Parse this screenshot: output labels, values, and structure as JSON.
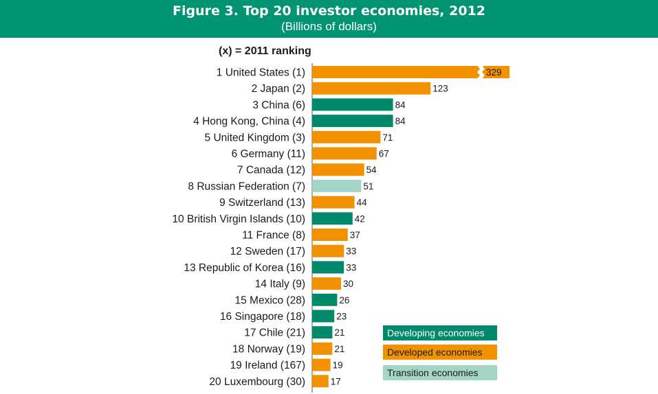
{
  "header": {
    "title": "Figure 3. Top 20 investor economies, 2012",
    "subtitle": "(Billions of dollars)"
  },
  "ranking_note": "(x) = 2011 ranking",
  "colors": {
    "header": "#009472",
    "developing": "#00896a",
    "developed": "#f29200",
    "transition": "#a4d5c6"
  },
  "legend": [
    {
      "label": "Developing economies",
      "group": "developing",
      "text_color": "#ffffff"
    },
    {
      "label": "Developed economies",
      "group": "developed",
      "text_color": "#1a1a1a"
    },
    {
      "label": "Transition economies",
      "group": "transition",
      "text_color": "#1a1a1a"
    }
  ],
  "chart_data": {
    "type": "bar",
    "orientation": "horizontal",
    "title": "Figure 3. Top 20 investor economies, 2012",
    "subtitle": "(Billions of dollars)",
    "xlabel": "",
    "ylabel": "",
    "grid": false,
    "axis_break": {
      "category": "1 United States (1)"
    },
    "categories": [
      "1 United States (1)",
      "2 Japan (2)",
      "3 China (6)",
      "4 Hong Kong, China (4)",
      "5 United Kingdom (3)",
      "6 Germany (11)",
      "7 Canada (12)",
      "8 Russian Federation (7)",
      "9 Switzerland (13)",
      "10 British Virgin Islands (10)",
      "11 France (8)",
      "12 Sweden (17)",
      "13 Republic of Korea (16)",
      "14 Italy (9)",
      "15 Mexico (28)",
      "16 Singapore (18)",
      "17 Chile (21)",
      "18 Norway (19)",
      "19 Ireland (167)",
      "20 Luxembourg (30)"
    ],
    "values": [
      329,
      123,
      84,
      84,
      71,
      67,
      54,
      51,
      44,
      42,
      37,
      33,
      33,
      30,
      26,
      23,
      21,
      21,
      19,
      17
    ],
    "groups": [
      "developed",
      "developed",
      "developing",
      "developing",
      "developed",
      "developed",
      "developed",
      "transition",
      "developed",
      "developing",
      "developed",
      "developed",
      "developing",
      "developed",
      "developing",
      "developing",
      "developing",
      "developed",
      "developed",
      "developed"
    ],
    "legend_placement": "bottom-right"
  }
}
